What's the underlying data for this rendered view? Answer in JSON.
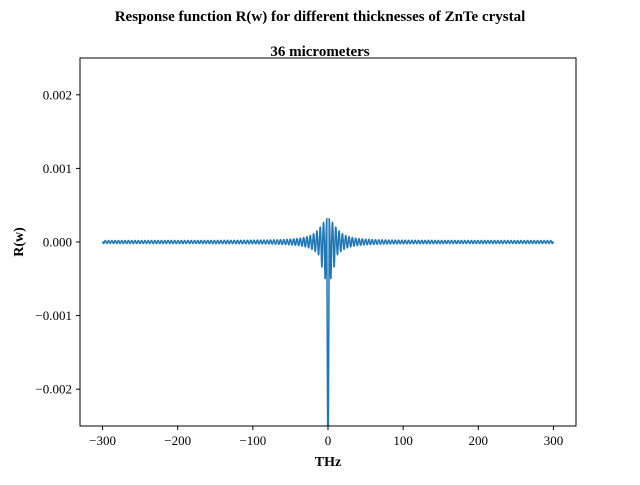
{
  "figure": {
    "suptitle": "Response function R(w) for different thicknesses of ZnTe crystal"
  },
  "chart_data": {
    "type": "line",
    "title": "36 micrometers",
    "xlabel": "THz",
    "ylabel": "R(w)",
    "xlim": [
      -330,
      330
    ],
    "ylim": [
      -0.0025,
      0.0025
    ],
    "xticks": [
      -300,
      -200,
      -100,
      0,
      100,
      200,
      300
    ],
    "xtick_labels": [
      "−300",
      "−200",
      "−100",
      "0",
      "100",
      "200",
      "300"
    ],
    "yticks": [
      -0.002,
      -0.001,
      0.0,
      0.001,
      0.002
    ],
    "ytick_labels": [
      "−0.002",
      "−0.001",
      "0.000",
      "0.001",
      "0.002"
    ],
    "grid": false,
    "legend": "none",
    "series": [
      {
        "color": "#1f77b4",
        "description": "oscillating response centered at 0 THz",
        "x_range": [
          -300,
          300
        ],
        "baseline": 0.0,
        "oscillation_period_thz": 4.4,
        "central_peak_min": -0.0025,
        "envelope_max": 0.00032,
        "side_lobe_min": -0.00043
      }
    ]
  }
}
